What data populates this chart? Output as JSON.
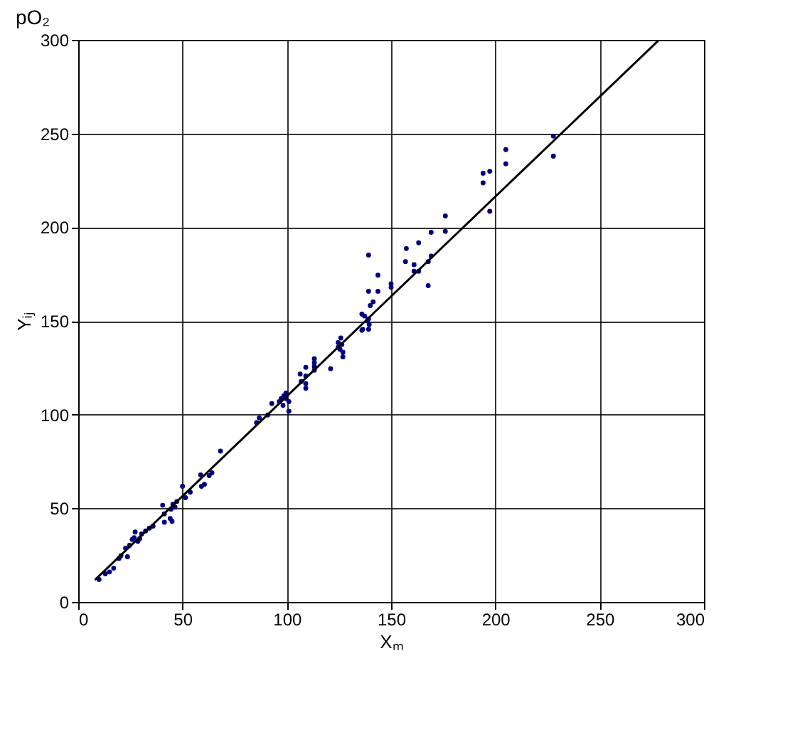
{
  "chart_data": {
    "type": "scatter",
    "title": "pO₂",
    "xlabel": "Xₘ",
    "ylabel": "Yᵢⱼ",
    "xlim": [
      0,
      300
    ],
    "ylim": [
      0,
      300
    ],
    "xticks": [
      0,
      50,
      100,
      150,
      200,
      250,
      300
    ],
    "yticks": [
      0,
      50,
      100,
      150,
      200,
      250,
      300
    ],
    "grid": true,
    "marker": "circle",
    "series": [
      {
        "color": "#000080",
        "x": [
          10,
          13,
          15,
          17,
          19.5,
          20.5,
          23.6,
          22.7,
          24.6,
          28.6,
          25.9,
          29.5,
          26.8,
          27.3,
          30.4,
          32.3,
          34.1,
          35.9,
          41.3,
          45,
          44.1,
          41.3,
          40.5,
          44.5,
          46.4,
          45.4,
          47.3,
          51.4,
          50,
          53.7,
          59.1,
          60.5,
          58.7,
          62.8,
          64.1,
          68.2,
          85.5,
          86.8,
          90.9,
          101,
          98.2,
          92.8,
          101,
          99.6,
          96.4,
          97.3,
          98.6,
          99.6,
          109.1,
          109.1,
          106.9,
          109.1,
          106.4,
          113.2,
          109.1,
          113.2,
          113.2,
          113.2,
          121,
          126.9,
          126.9,
          125.5,
          124.6,
          126.4,
          124.6,
          125.9,
          136,
          139.2,
          136.4,
          138.7,
          139.5,
          137.3,
          136,
          139.2,
          140,
          141.4,
          139.2,
          143.7,
          150,
          150,
          167.8,
          161,
          161,
          163.2,
          167.8,
          169.2,
          156.9,
          139.2,
          143.7,
          157.3,
          163.2,
          169.2,
          176,
          176,
          194.1,
          194.1,
          197.3,
          197.3,
          205,
          205,
          227.8,
          227.8
        ],
        "values": [
          12,
          15,
          16,
          18,
          23.2,
          24.7,
          24.1,
          28.7,
          30.2,
          32.3,
          33.3,
          33.8,
          34.3,
          37.3,
          36.3,
          37.9,
          39.4,
          40.4,
          42.5,
          43,
          44.5,
          47,
          51.6,
          49.5,
          50.6,
          52.1,
          53.6,
          55.6,
          61.7,
          58.6,
          61.7,
          62.8,
          67.8,
          67.4,
          68.9,
          80.5,
          95.7,
          98.2,
          99.8,
          101.8,
          104.9,
          105.9,
          106.9,
          108.5,
          106.9,
          108.5,
          110,
          111.5,
          114,
          116.5,
          117.6,
          120.6,
          121.6,
          123.7,
          125.2,
          125.7,
          127.7,
          129.8,
          124.5,
          130.8,
          133.3,
          134.8,
          135.9,
          137.4,
          138.4,
          140.9,
          145,
          145.5,
          145.5,
          150,
          148,
          152.6,
          153.6,
          151.1,
          158.2,
          160.2,
          165.8,
          165.8,
          167.9,
          169.8,
          168.8,
          176.5,
          180,
          176.5,
          181.6,
          184.6,
          181.6,
          185.1,
          174.4,
          188.6,
          191.7,
          197.3,
          206,
          197.8,
          228.8,
          223.7,
          229.8,
          208.5,
          241.4,
          233.8,
          248.6,
          237.9
        ]
      },
      {
        "type": "line",
        "marker": "none",
        "color": "#000000",
        "x": [
          8,
          278
        ],
        "values": [
          11.7,
          299.5
        ]
      }
    ]
  }
}
